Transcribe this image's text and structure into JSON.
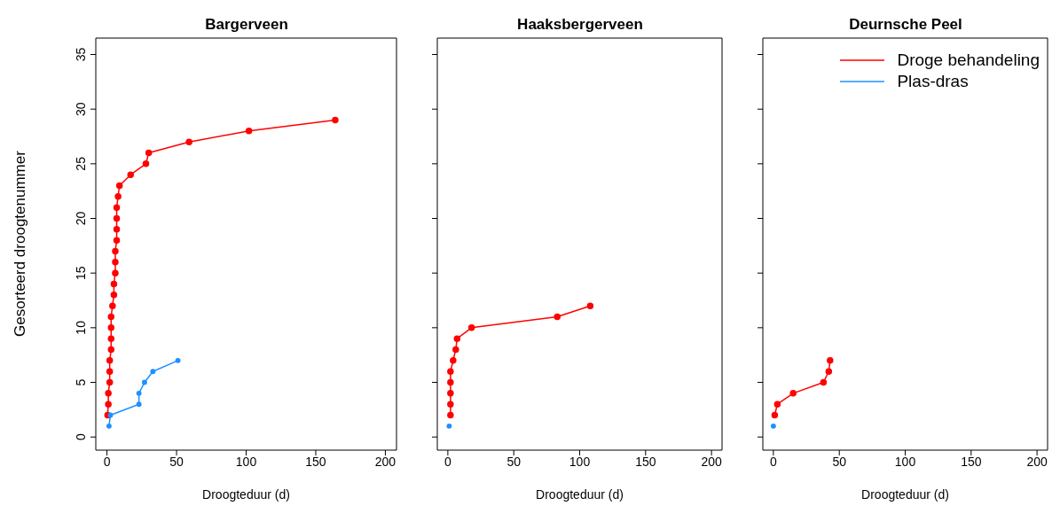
{
  "chart_data": [
    {
      "type": "line",
      "title": "Bargerveen",
      "xlabel": "Droogteduur (d)",
      "ylabel": "Gesorteerd droogtenummer",
      "xlim": [
        -8,
        208
      ],
      "xticks": [
        0,
        50,
        100,
        150,
        200
      ],
      "ylim": [
        -1.2,
        36.5
      ],
      "yticks": [
        0,
        5,
        10,
        15,
        20,
        25,
        30,
        35
      ],
      "marker": "circle",
      "series": [
        {
          "color": "#ff0000",
          "x": [
            0.5,
            1,
            1,
            2,
            2,
            2,
            3,
            3,
            3,
            3,
            4,
            5,
            5,
            6,
            6,
            6,
            7,
            7,
            7,
            7,
            8,
            9,
            17,
            28,
            30,
            59,
            102,
            164
          ],
          "values": [
            2,
            3,
            4,
            5,
            6,
            7,
            8,
            9,
            10,
            11,
            12,
            13,
            14,
            15,
            16,
            17,
            18,
            19,
            20,
            21,
            22,
            23,
            24,
            25,
            26,
            27,
            28,
            29
          ]
        },
        {
          "color": "#1e90ff",
          "x": [
            1.5,
            2.5,
            23,
            23,
            27,
            33,
            51
          ],
          "values": [
            1,
            2,
            3,
            4,
            5,
            6,
            7
          ]
        }
      ]
    },
    {
      "type": "line",
      "title": "Haaksbergerveen",
      "xlabel": "Droogteduur (d)",
      "xlim": [
        -8,
        208
      ],
      "xticks": [
        0,
        50,
        100,
        150,
        200
      ],
      "ylim": [
        -1.2,
        36.5
      ],
      "yticks": [
        0,
        5,
        10,
        15,
        20,
        25,
        30,
        35
      ],
      "tick_labels": "x",
      "marker": "circle",
      "series": [
        {
          "color": "#ff0000",
          "x": [
            2,
            2,
            2,
            2,
            2,
            4,
            6,
            7,
            18,
            83,
            108
          ],
          "values": [
            2,
            3,
            4,
            5,
            6,
            7,
            8,
            9,
            10,
            11,
            12
          ]
        },
        {
          "color": "#1e90ff",
          "x": [
            1
          ],
          "values": [
            1
          ]
        }
      ]
    },
    {
      "type": "line",
      "title": "Deurnsche Peel",
      "xlabel": "Droogteduur (d)",
      "xlim": [
        -8,
        208
      ],
      "xticks": [
        0,
        50,
        100,
        150,
        200
      ],
      "ylim": [
        -1.2,
        36.5
      ],
      "yticks": [
        0,
        5,
        10,
        15,
        20,
        25,
        30,
        35
      ],
      "tick_labels": "x",
      "marker": "circle",
      "legend": "top right",
      "series": [
        {
          "name": "Droge behandeling",
          "color": "#ff0000",
          "x": [
            1,
            3,
            15,
            38,
            42,
            43
          ],
          "values": [
            2,
            3,
            4,
            5,
            6,
            7
          ]
        },
        {
          "name": "Plas-dras",
          "color": "#1e90ff",
          "x": [
            0
          ],
          "values": [
            1
          ]
        }
      ]
    }
  ]
}
